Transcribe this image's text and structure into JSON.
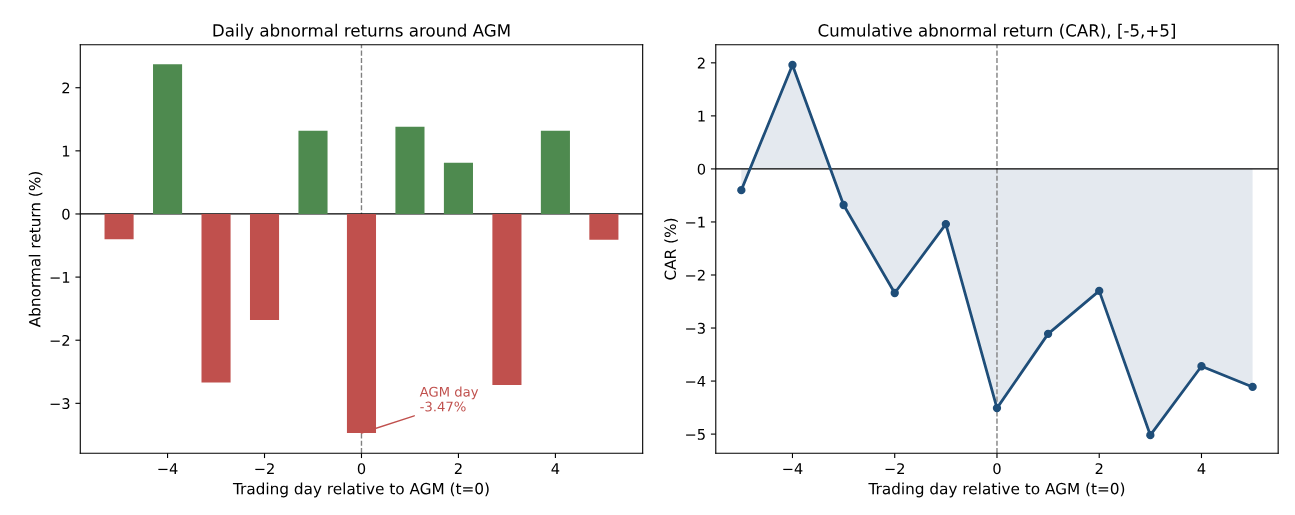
{
  "chart_data": [
    {
      "type": "bar",
      "title": "Daily abnormal returns around AGM",
      "xlabel": "Trading day relative to AGM (t=0)",
      "ylabel": "Abnormal return (%)",
      "x": [
        -5,
        -4,
        -3,
        -2,
        -1,
        0,
        1,
        2,
        3,
        4,
        5
      ],
      "values": [
        -0.4,
        2.37,
        -2.67,
        -1.68,
        1.32,
        -3.47,
        1.38,
        0.81,
        -2.71,
        1.32,
        -0.41
      ],
      "colors": [
        "#c0504d",
        "#4e8a4f",
        "#c0504d",
        "#c0504d",
        "#4e8a4f",
        "#c0504d",
        "#4e8a4f",
        "#4e8a4f",
        "#c0504d",
        "#4e8a4f",
        "#c0504d"
      ],
      "xlim": [
        -5.8,
        5.8
      ],
      "xticks": [
        -4,
        -2,
        0,
        2,
        4
      ],
      "ylim": [
        -3.79,
        2.68
      ],
      "yticks": [
        -3,
        -2,
        -1,
        0,
        1,
        2
      ],
      "ref_lines": [
        {
          "axis": "x",
          "value": 0,
          "color": "#808080",
          "line_style": "dashed"
        },
        {
          "axis": "y",
          "value": 0,
          "color": "#000000",
          "line_style": "solid"
        }
      ],
      "annotations": [
        {
          "text": "AGM day\n-3.47%",
          "x": 0,
          "y": -3.47
        }
      ],
      "grid": false,
      "legend": false
    },
    {
      "type": "area",
      "title": "Cumulative abnormal return (CAR), [-5,+5]",
      "xlabel": "Trading day relative to AGM (t=0)",
      "ylabel": "CAR (%)",
      "x": [
        -5,
        -4,
        -3,
        -2,
        -1,
        0,
        1,
        2,
        3,
        4,
        5
      ],
      "series": [
        {
          "color": "#1f4e79",
          "values": [
            -0.4,
            1.96,
            -0.68,
            -2.34,
            -1.04,
            -4.51,
            -3.11,
            -2.3,
            -5.02,
            -3.72,
            -4.11
          ]
        }
      ],
      "marker": "circle",
      "line_style": "solid",
      "xlim": [
        -5.5,
        5.5
      ],
      "xticks": [
        -4,
        -2,
        0,
        2,
        4
      ],
      "ylim": [
        -5.36,
        2.34
      ],
      "yticks": [
        -5,
        -4,
        -3,
        -2,
        -1,
        0,
        1,
        2
      ],
      "ref_lines": [
        {
          "axis": "x",
          "value": 0,
          "color": "#808080",
          "line_style": "dashed"
        },
        {
          "axis": "y",
          "value": 0,
          "color": "#000000",
          "line_style": "solid"
        }
      ],
      "grid": false,
      "legend": false
    }
  ]
}
